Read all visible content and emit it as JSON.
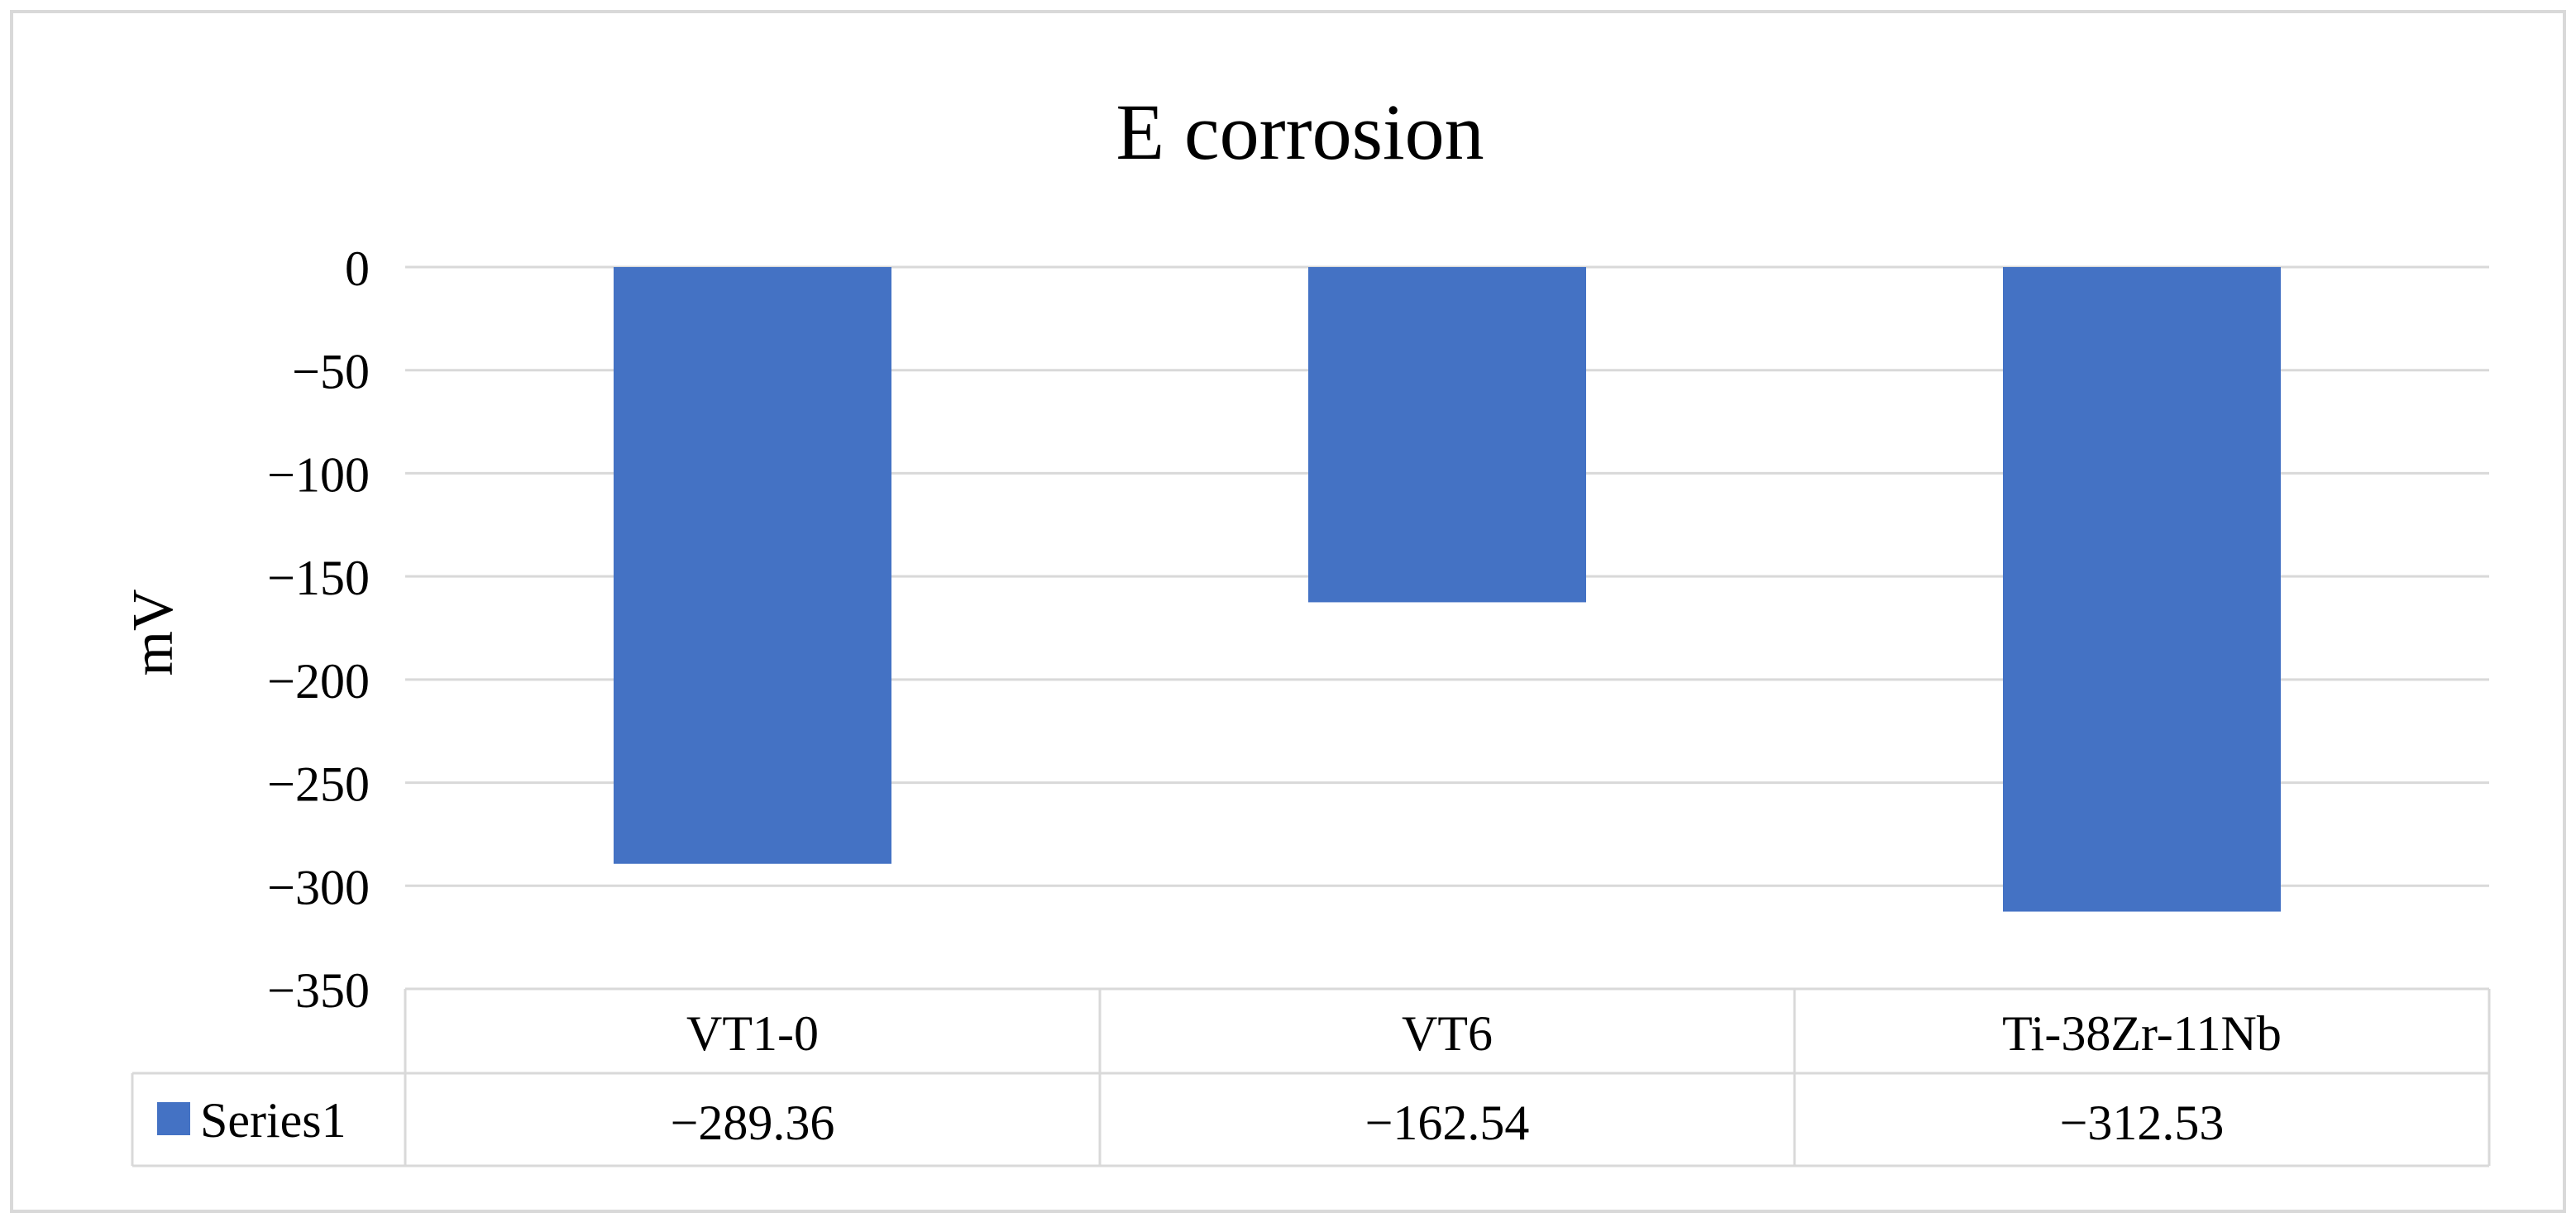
{
  "chart_data": {
    "type": "bar",
    "title": "E corrosion",
    "xlabel": "",
    "ylabel": "mV",
    "categories": [
      "VT1-0",
      "VT6",
      "Ti-38Zr-11Nb"
    ],
    "series": [
      {
        "name": "Series1",
        "values": [
          -289.36,
          -162.54,
          -312.53
        ],
        "value_labels": [
          "−289.36",
          "−162.54",
          "−312.53"
        ],
        "color": "#4472C4"
      }
    ],
    "ylim": [
      -350,
      0
    ],
    "yticks": [
      0,
      -50,
      -100,
      -150,
      -200,
      -250,
      -300,
      -350
    ],
    "ytick_labels": [
      "0",
      "−50",
      "−100",
      "−150",
      "−200",
      "−250",
      "−300",
      "−350"
    ],
    "grid": true,
    "data_table": true,
    "legend": "data-table"
  },
  "colors": {
    "bar": "#4472C4",
    "gridline": "#D9D9D9",
    "border": "#D9D9D9"
  }
}
